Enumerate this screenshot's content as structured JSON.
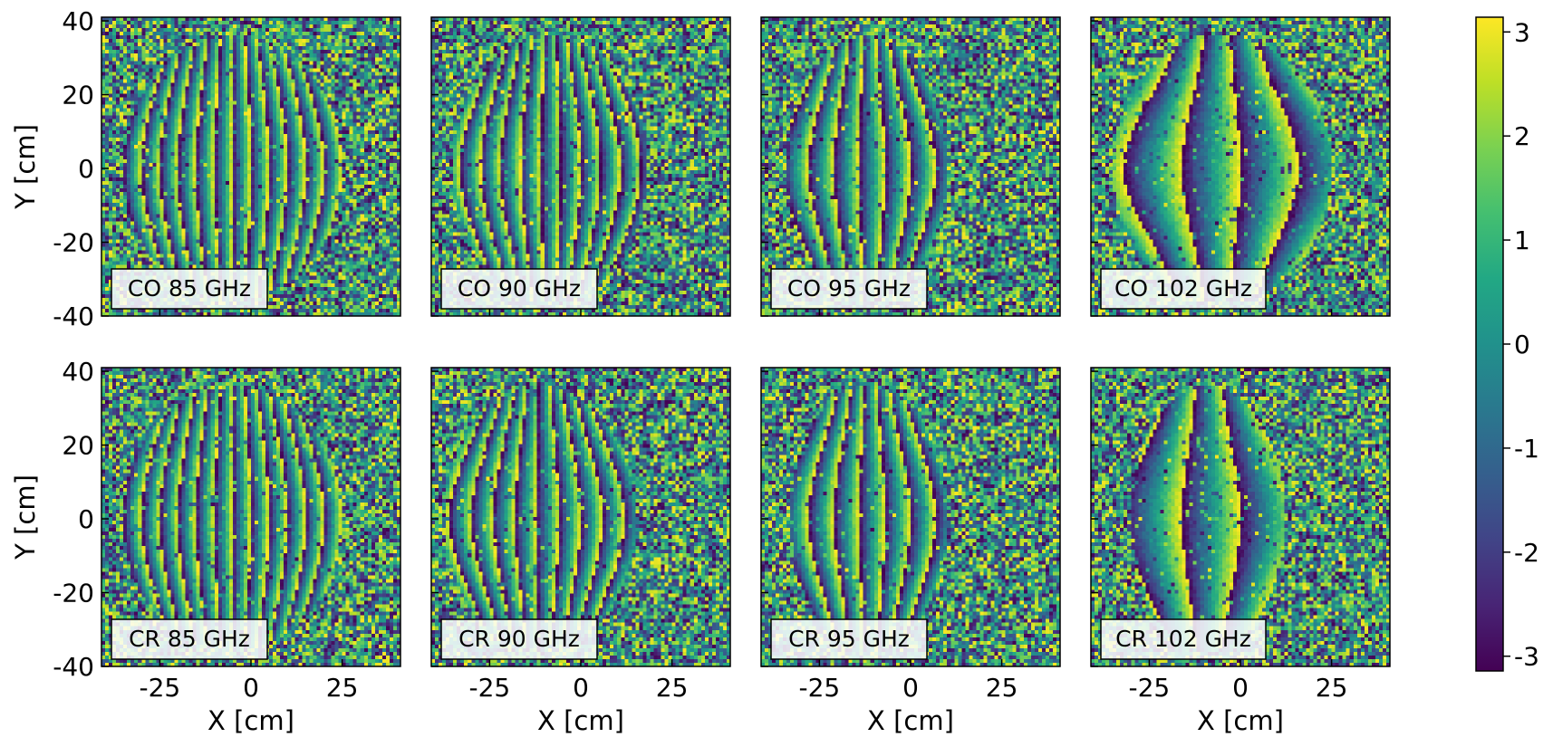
{
  "chart_data": {
    "type": "heatmap",
    "description_of_values": "phase maps on a colour scale from -pi to pi",
    "colormap": "viridis",
    "clim": [
      -3.14159,
      3.14159
    ],
    "colorbar": {
      "ticks": [
        3,
        2,
        1,
        0,
        -1,
        -2,
        -3
      ],
      "tick_labels": [
        "3",
        "2",
        "1",
        "0",
        "-1",
        "-2",
        "-3"
      ]
    },
    "x_range": [
      -41,
      41
    ],
    "y_range": [
      -40,
      41
    ],
    "xlabel": "X [cm]",
    "ylabel": "Y [cm]",
    "x_ticks": [
      -25,
      0,
      25
    ],
    "x_tick_labels": [
      "-25",
      "0",
      "25"
    ],
    "y_ticks": [
      40,
      20,
      0,
      -20,
      -40
    ],
    "y_tick_labels": [
      "40",
      "20",
      "0",
      "-20",
      "-40"
    ],
    "panels": [
      {
        "label": "CO 85 GHz",
        "row": 0,
        "col": 0,
        "fringe_period_cm": 5.0,
        "fringe_x_range": [
          -35,
          25
        ],
        "curvature": 0.004,
        "seed": 11
      },
      {
        "label": "CO 90 GHz",
        "row": 0,
        "col": 1,
        "fringe_period_cm": 5.5,
        "fringe_x_range": [
          -35,
          18
        ],
        "curvature": 0.006,
        "seed": 23
      },
      {
        "label": "CO 95 GHz",
        "row": 0,
        "col": 2,
        "fringe_period_cm": 7.0,
        "fringe_x_range": [
          -34,
          10
        ],
        "curvature": 0.008,
        "seed": 37
      },
      {
        "label": "CO 102 GHz",
        "row": 0,
        "col": 3,
        "fringe_period_cm": 16.0,
        "fringe_x_range": [
          -35,
          25
        ],
        "curvature": 0.01,
        "seed": 41
      },
      {
        "label": "CR 85 GHz",
        "row": 1,
        "col": 0,
        "fringe_period_cm": 5.0,
        "fringe_x_range": [
          -35,
          25
        ],
        "curvature": 0.004,
        "seed": 53
      },
      {
        "label": "CR 90 GHz",
        "row": 1,
        "col": 1,
        "fringe_period_cm": 6.0,
        "fringe_x_range": [
          -37,
          15
        ],
        "curvature": 0.007,
        "seed": 67
      },
      {
        "label": "CR 95 GHz",
        "row": 1,
        "col": 2,
        "fringe_period_cm": 7.0,
        "fringe_x_range": [
          -33,
          10
        ],
        "curvature": 0.008,
        "seed": 71
      },
      {
        "label": "CR 102 GHz",
        "row": 1,
        "col": 3,
        "fringe_period_cm": 16.0,
        "fringe_x_range": [
          -30,
          12
        ],
        "curvature": 0.01,
        "seed": 83
      }
    ]
  }
}
